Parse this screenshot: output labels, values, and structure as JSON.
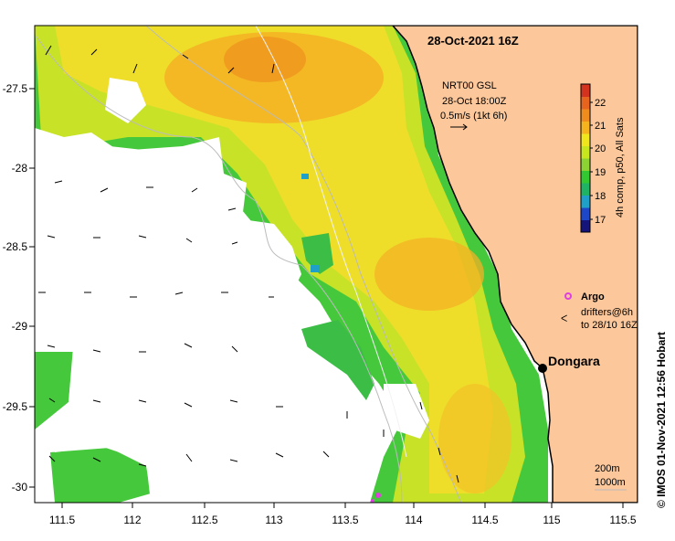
{
  "title": "28-Oct-2021 16Z",
  "current_legend": {
    "product": "NRT00 GSL",
    "time": "28-Oct 18:00Z",
    "scale": "0.5m/s (1kt 6h)"
  },
  "colorbar": {
    "label": "4h comp, p50, All Sats",
    "ticks": [
      "17",
      "18",
      "19",
      "20",
      "21",
      "22"
    ],
    "colors": [
      "#14147a",
      "#1e46c8",
      "#1ea0c8",
      "#1eb464",
      "#32c832",
      "#8cd232",
      "#c8e61e",
      "#f0e61e",
      "#f5b41e",
      "#f08c1e",
      "#e6641e",
      "#d2321e"
    ]
  },
  "argo_legend": {
    "argo_label": "Argo",
    "drifters_label_1": "drifters@6h",
    "drifters_label_2": "to 28/10 16Z"
  },
  "place": {
    "name": "Dongara"
  },
  "contours": {
    "label_1": "200m",
    "label_2": "1000m"
  },
  "credit": "© IMOS 01-Nov-2021 12:56 Hobart",
  "axes": {
    "x_ticks": [
      "111.5",
      "112",
      "112.5",
      "113",
      "113.5",
      "114",
      "114.5",
      "115",
      "115.5"
    ],
    "y_ticks": [
      "-27.5",
      "-28",
      "-28.5",
      "-29",
      "-29.5",
      "-30"
    ]
  },
  "colors": {
    "land": "#fbc79b",
    "ocean": "#ffffff",
    "argo": "#e040e0"
  }
}
